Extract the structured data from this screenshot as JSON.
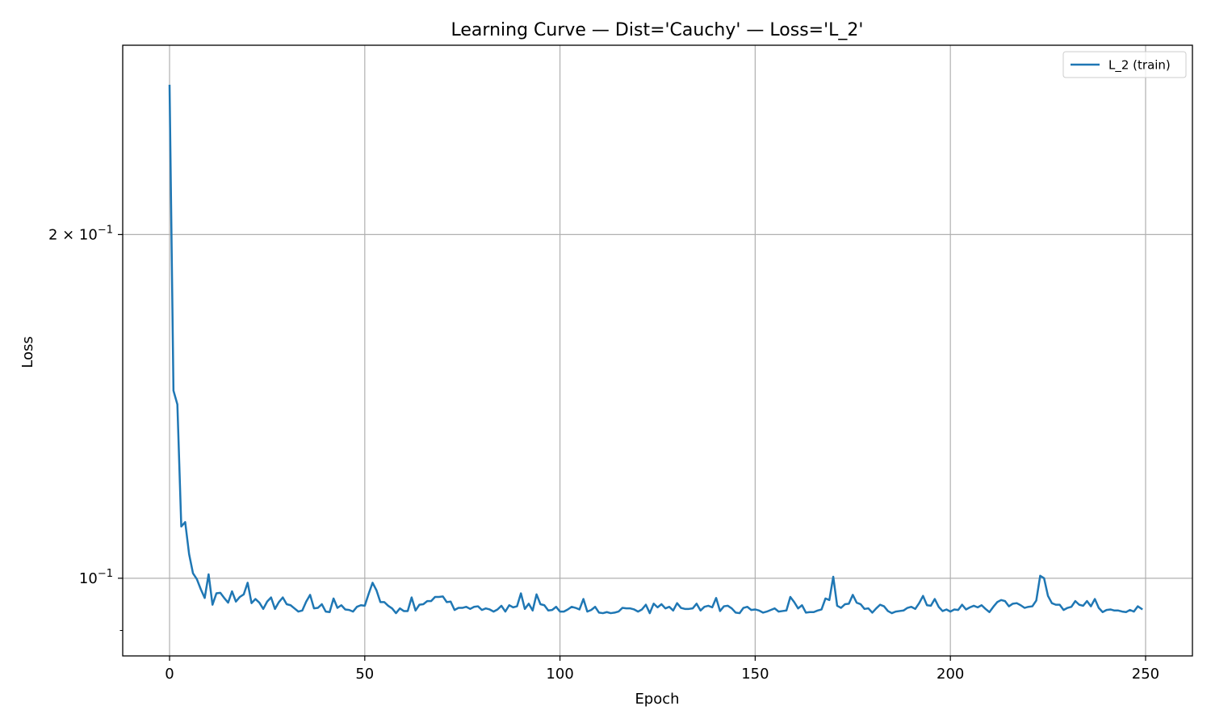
{
  "chart_data": {
    "type": "line",
    "title": "Learning Curve — Dist='Cauchy' — Loss='L_2'",
    "xlabel": "Epoch",
    "ylabel": "Loss",
    "x_scale": "linear",
    "y_scale": "log",
    "xlim": [
      -12,
      262
    ],
    "ylim": [
      0.0855,
      0.293
    ],
    "x_ticks": [
      0,
      50,
      100,
      150,
      200,
      250
    ],
    "x_tick_labels": [
      "0",
      "50",
      "100",
      "150",
      "200",
      "250"
    ],
    "y_ticks": [
      0.1,
      0.2
    ],
    "y_tick_label_parts": [
      {
        "base": "10",
        "exp": "−1"
      },
      {
        "base": "2 × 10",
        "exp": "−1"
      }
    ],
    "y_minor_ticks": [
      0.09
    ],
    "grid": true,
    "legend_position": "upper right",
    "color": "#1f77b4",
    "series": [
      {
        "name": "L_2 (train)",
        "x_start": 0,
        "x_step": 1,
        "y": [
          0.27,
          0.146,
          0.142,
          0.111,
          0.112,
          0.105,
          0.101,
          0.0998,
          0.0978,
          0.0961,
          0.1008,
          0.0948,
          0.097,
          0.0971,
          0.0961,
          0.0952,
          0.0974,
          0.0954,
          0.0963,
          0.0968,
          0.0991,
          0.0951,
          0.0959,
          0.0952,
          0.094,
          0.0954,
          0.0962,
          0.094,
          0.0953,
          0.0962,
          0.0949,
          0.0947,
          0.0941,
          0.0935,
          0.0937,
          0.0954,
          0.0967,
          0.0941,
          0.0942,
          0.0949,
          0.0935,
          0.0934,
          0.096,
          0.0942,
          0.0947,
          0.0939,
          0.0938,
          0.0935,
          0.0944,
          0.0947,
          0.0946,
          0.0969,
          0.0991,
          0.0976,
          0.0953,
          0.0953,
          0.0946,
          0.0941,
          0.0932,
          0.0941,
          0.0936,
          0.0936,
          0.0962,
          0.0937,
          0.0948,
          0.0949,
          0.0955,
          0.0955,
          0.0963,
          0.0963,
          0.0964,
          0.0953,
          0.0954,
          0.0938,
          0.0942,
          0.0942,
          0.0944,
          0.094,
          0.0944,
          0.0945,
          0.0938,
          0.0941,
          0.0939,
          0.0935,
          0.0939,
          0.0946,
          0.0935,
          0.0947,
          0.0943,
          0.0945,
          0.097,
          0.094,
          0.095,
          0.0937,
          0.0968,
          0.0949,
          0.0947,
          0.0937,
          0.0938,
          0.0944,
          0.0935,
          0.0935,
          0.0939,
          0.0944,
          0.0942,
          0.0939,
          0.0959,
          0.0935,
          0.0938,
          0.0944,
          0.0933,
          0.0932,
          0.0934,
          0.0932,
          0.0933,
          0.0935,
          0.0942,
          0.0941,
          0.0941,
          0.0939,
          0.0935,
          0.0939,
          0.0948,
          0.0932,
          0.095,
          0.0943,
          0.0949,
          0.0941,
          0.0944,
          0.0937,
          0.0951,
          0.0942,
          0.094,
          0.094,
          0.0941,
          0.095,
          0.0937,
          0.0944,
          0.0946,
          0.0943,
          0.0961,
          0.0936,
          0.0945,
          0.0946,
          0.0941,
          0.0933,
          0.0932,
          0.0942,
          0.0944,
          0.0938,
          0.0939,
          0.0937,
          0.0933,
          0.0935,
          0.0938,
          0.0941,
          0.0935,
          0.0936,
          0.0937,
          0.0963,
          0.0953,
          0.0941,
          0.0947,
          0.0933,
          0.0934,
          0.0934,
          0.0937,
          0.0939,
          0.096,
          0.0957,
          0.1003,
          0.0946,
          0.0942,
          0.0949,
          0.095,
          0.0967,
          0.0952,
          0.0949,
          0.094,
          0.0941,
          0.0933,
          0.0941,
          0.0948,
          0.0945,
          0.0936,
          0.0932,
          0.0935,
          0.0936,
          0.0937,
          0.0942,
          0.0944,
          0.094,
          0.0951,
          0.0965,
          0.0947,
          0.0946,
          0.0959,
          0.0944,
          0.0936,
          0.0939,
          0.0935,
          0.0939,
          0.0938,
          0.0948,
          0.0939,
          0.0943,
          0.0946,
          0.0943,
          0.0947,
          0.094,
          0.0934,
          0.0944,
          0.0953,
          0.0957,
          0.0955,
          0.0945,
          0.095,
          0.0951,
          0.0947,
          0.0942,
          0.0944,
          0.0945,
          0.0956,
          0.1005,
          0.1,
          0.0965,
          0.0951,
          0.0948,
          0.0948,
          0.0938,
          0.0942,
          0.0944,
          0.0955,
          0.0948,
          0.0946,
          0.0955,
          0.0945,
          0.0959,
          0.0942,
          0.0934,
          0.0938,
          0.0939,
          0.0937,
          0.0937,
          0.0935,
          0.0934,
          0.0938,
          0.0935,
          0.0945,
          0.094
        ]
      }
    ]
  }
}
